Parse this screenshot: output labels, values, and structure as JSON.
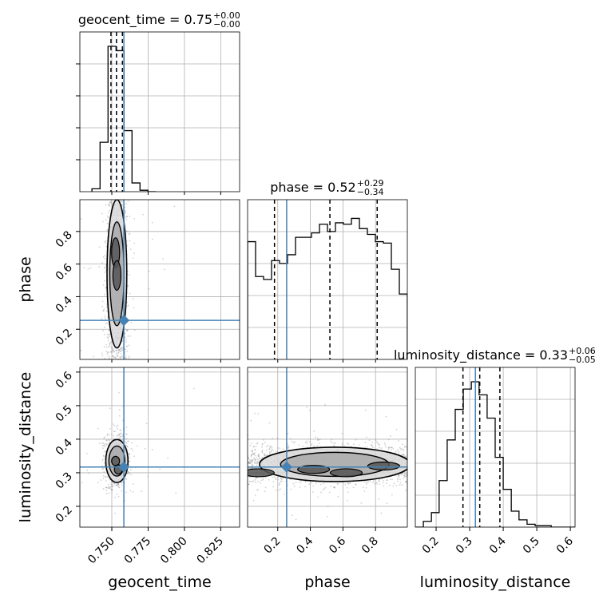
{
  "chart_data": {
    "type": "corner",
    "parameters": [
      "geocent_time",
      "phase",
      "luminosity_distance"
    ],
    "titles": {
      "geocent_time": {
        "name": "geocent_time",
        "median": "0.75",
        "plus": "+0.00",
        "minus": "−0.00"
      },
      "phase": {
        "name": "phase",
        "median": "0.52",
        "plus": "+0.29",
        "minus": "−0.34"
      },
      "luminosity_distance": {
        "name": "luminosity_distance",
        "median": "0.33",
        "plus": "+0.06",
        "minus": "−0.05"
      }
    },
    "axis_labels": {
      "geocent_time": "geocent_time",
      "phase": "phase",
      "luminosity_distance": "luminosity_distance"
    },
    "ranges": {
      "geocent_time": [
        0.728,
        0.838
      ],
      "phase": [
        0.015,
        0.995
      ],
      "luminosity_distance": [
        0.138,
        0.614
      ]
    },
    "ticks": {
      "geocent_time": [
        0.75,
        0.775,
        0.8,
        0.825
      ],
      "phase": [
        0.2,
        0.4,
        0.6,
        0.8
      ],
      "luminosity_distance": [
        0.2,
        0.3,
        0.4,
        0.5,
        0.6
      ]
    },
    "tick_labels": {
      "geocent_time": [
        "0.750",
        "0.775",
        "0.800",
        "0.825"
      ],
      "phase": [
        "0.2",
        "0.4",
        "0.6",
        "0.8"
      ],
      "luminosity_distance": [
        "0.2",
        "0.3",
        "0.4",
        "0.5",
        "0.6"
      ]
    },
    "truths": {
      "geocent_time": 0.7583,
      "phase": 0.2547,
      "luminosity_distance": 0.317
    },
    "quantiles": {
      "geocent_time": [
        0.7494,
        0.7532,
        0.7573
      ],
      "phase": [
        0.18,
        0.52,
        0.81
      ],
      "luminosity_distance": [
        0.28,
        0.33,
        0.39
      ]
    },
    "histograms": {
      "geocent_time": {
        "edges": [
          0.7363,
          0.7419,
          0.7474,
          0.7529,
          0.7584,
          0.7639,
          0.7694,
          0.7749,
          0.7804
        ],
        "counts": [
          0.02,
          0.34,
          1.0,
          0.97,
          0.42,
          0.06,
          0.01,
          0.0
        ]
      },
      "phase": {
        "edges": [
          0.015,
          0.064,
          0.113,
          0.162,
          0.211,
          0.26,
          0.309,
          0.358,
          0.407,
          0.456,
          0.505,
          0.554,
          0.603,
          0.652,
          0.701,
          0.75,
          0.799,
          0.848,
          0.897,
          0.946,
          0.995
        ],
        "counts": [
          0.81,
          0.57,
          0.55,
          0.68,
          0.66,
          0.72,
          0.84,
          0.84,
          0.87,
          0.93,
          0.88,
          0.94,
          0.93,
          0.97,
          0.9,
          0.86,
          0.81,
          0.8,
          0.62,
          0.45
        ]
      },
      "luminosity_distance": {
        "edges": [
          0.138,
          0.162,
          0.186,
          0.209,
          0.233,
          0.257,
          0.281,
          0.305,
          0.328,
          0.352,
          0.376,
          0.4,
          0.424,
          0.447,
          0.471,
          0.495,
          0.519,
          0.543,
          0.567,
          0.59,
          0.614
        ],
        "counts": [
          0.0,
          0.04,
          0.1,
          0.32,
          0.6,
          0.81,
          0.95,
          1.0,
          0.91,
          0.75,
          0.48,
          0.26,
          0.11,
          0.05,
          0.02,
          0.01,
          0.01,
          0.0,
          0.0,
          0.0
        ]
      }
    },
    "panels_2d": [
      {
        "x": "geocent_time",
        "y": "phase",
        "center": [
          0.7535,
          0.54
        ],
        "spread": [
          0.004,
          0.26
        ],
        "n_points": 900,
        "density_peaks": [
          [
            0.7526,
            0.67
          ],
          [
            0.7535,
            0.53
          ]
        ]
      },
      {
        "x": "geocent_time",
        "y": "luminosity_distance",
        "center": [
          0.7535,
          0.335
        ],
        "spread": [
          0.0045,
          0.04
        ],
        "n_points": 800,
        "density_peaks": [
          [
            0.7526,
            0.335
          ],
          [
            0.7545,
            0.31
          ]
        ]
      },
      {
        "x": "phase",
        "y": "luminosity_distance",
        "center": [
          0.55,
          0.325
        ],
        "spread": [
          0.28,
          0.032
        ],
        "n_points": 1600,
        "density_peaks": [
          [
            0.42,
            0.31
          ],
          [
            0.62,
            0.3
          ],
          [
            0.85,
            0.32
          ],
          [
            0.08,
            0.3
          ]
        ]
      }
    ],
    "colors": {
      "truth": "#4682b4",
      "hist": "#000000",
      "grid": "#b0b0b0",
      "points": "#7f7f7f"
    },
    "grid": true
  }
}
